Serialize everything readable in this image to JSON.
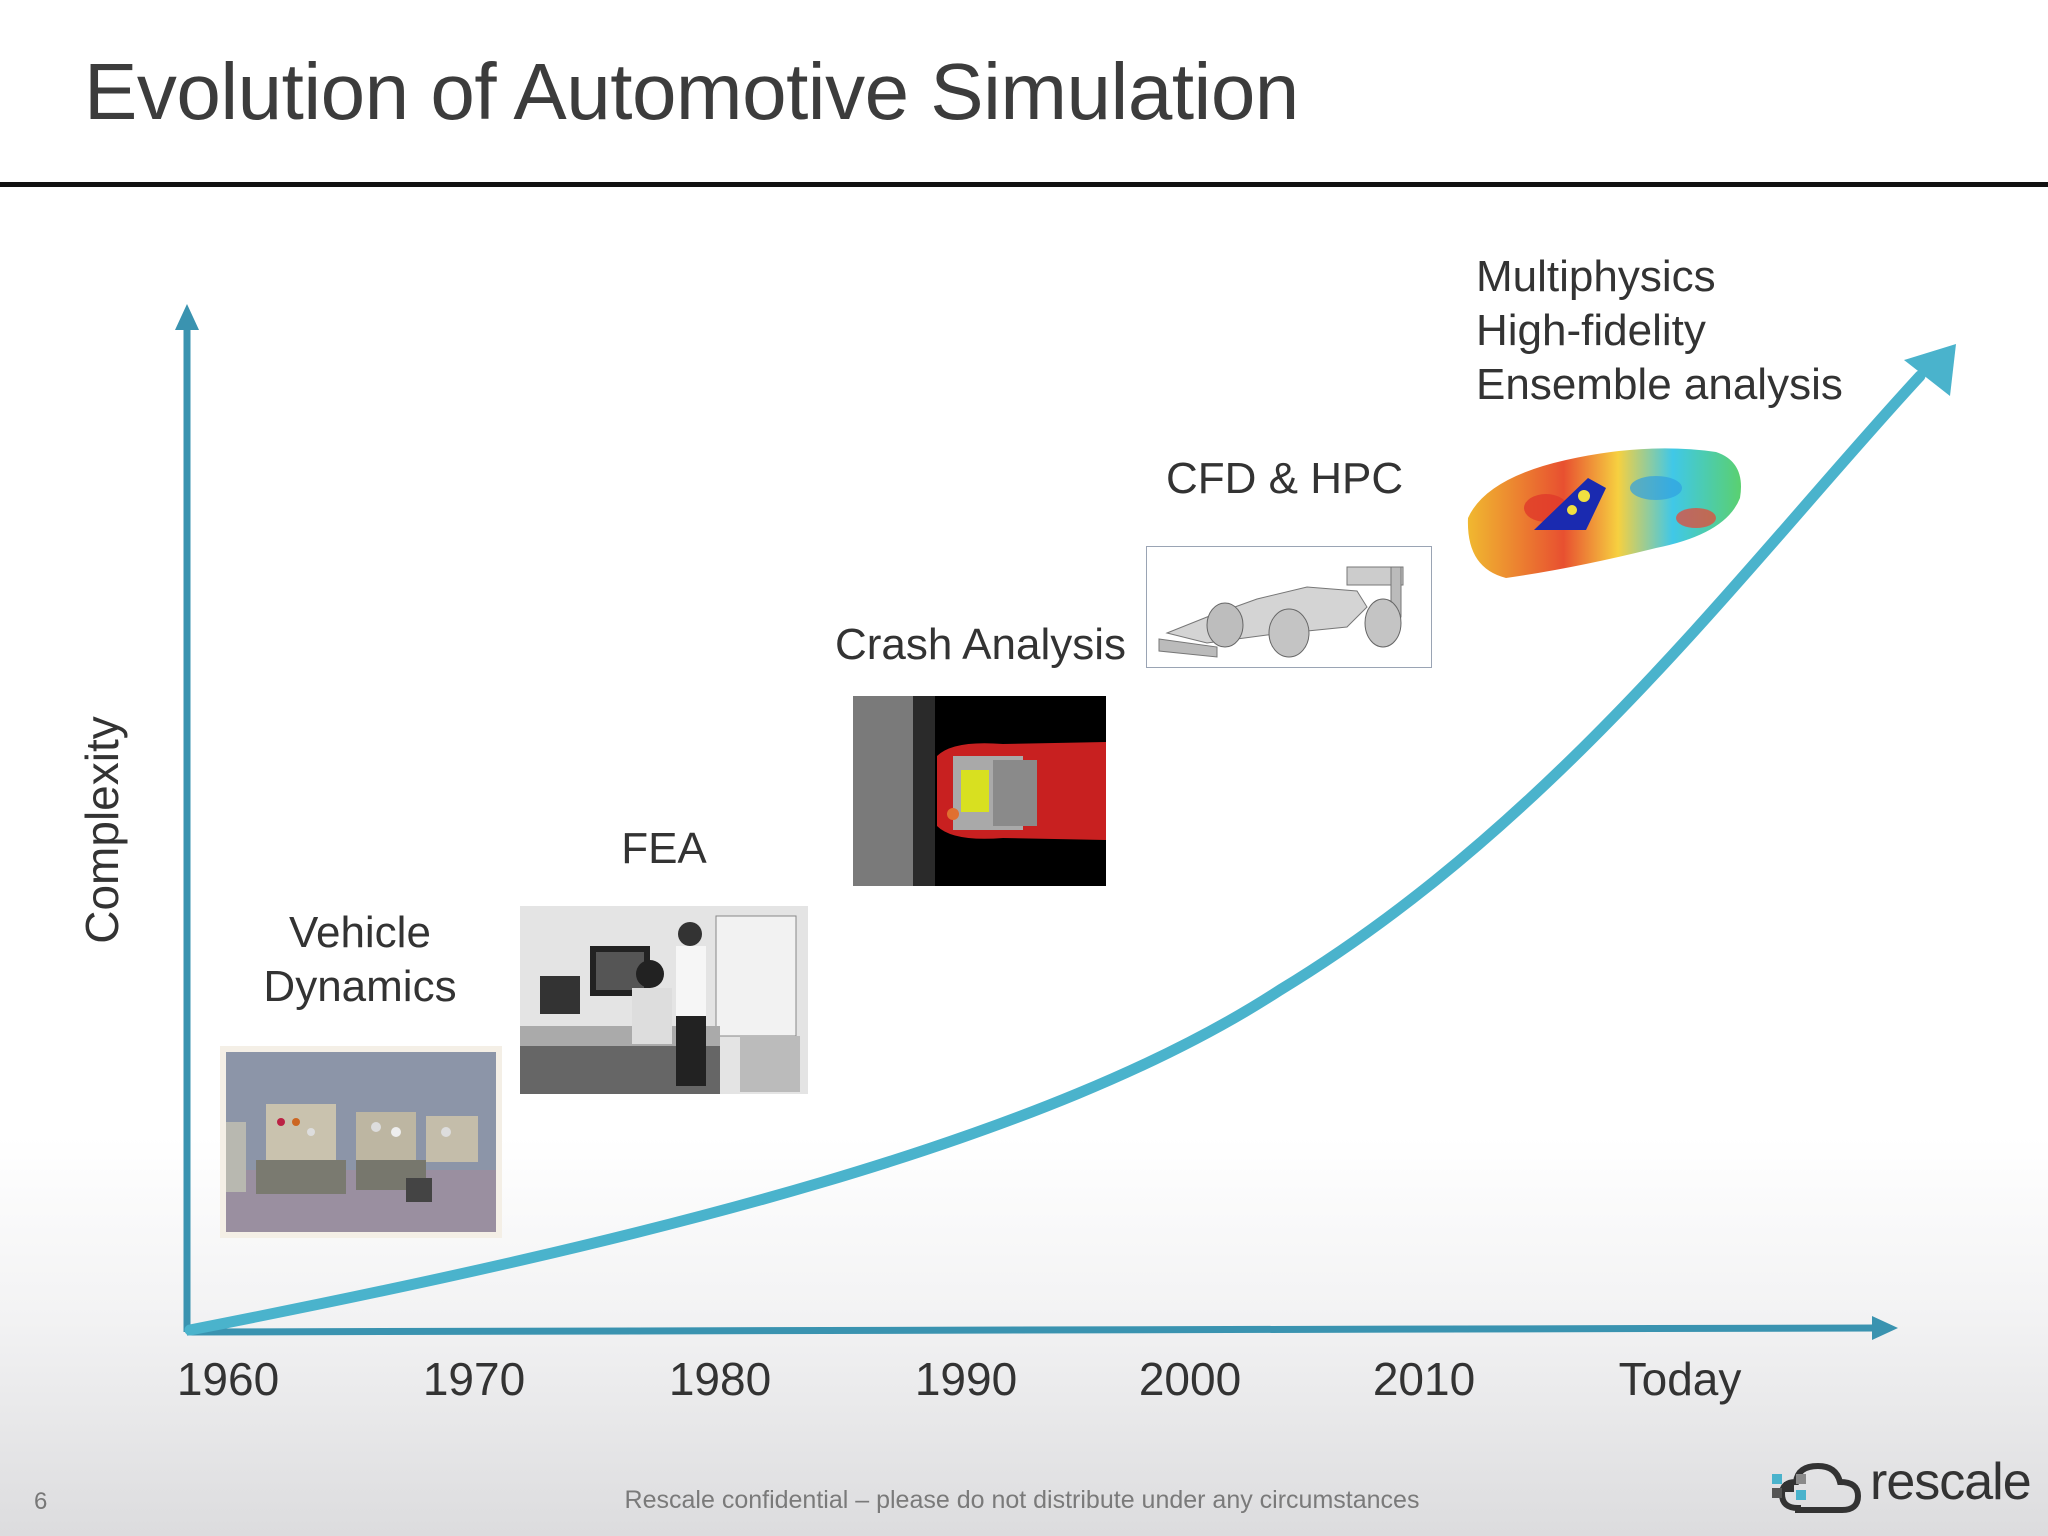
{
  "slide": {
    "title": "Evolution of Automotive Simulation",
    "page_number": "6",
    "footer": "Rescale confidential – please do not distribute under any circumstances"
  },
  "brand": {
    "name": "rescale",
    "accent": "#4ab3cc",
    "axis_color": "#3a93b0"
  },
  "axes": {
    "y_label": "Complexity",
    "x_ticks": [
      "1960",
      "1970",
      "1980",
      "1990",
      "2000",
      "2010",
      "Today"
    ]
  },
  "eras": [
    {
      "lines": [
        "Vehicle",
        "Dynamics"
      ],
      "image": "vintage-lab-photo"
    },
    {
      "lines": [
        "FEA"
      ],
      "image": "engineers-at-workstation-photo"
    },
    {
      "lines": [
        "Crash Analysis"
      ],
      "image": "crash-simulation-image"
    },
    {
      "lines": [
        "CFD & HPC"
      ],
      "image": "f1-car-mesh-image"
    },
    {
      "lines": [
        "Multiphysics",
        "High-fidelity",
        "Ensemble analysis"
      ],
      "image": "car-contour-plot-image"
    }
  ]
}
